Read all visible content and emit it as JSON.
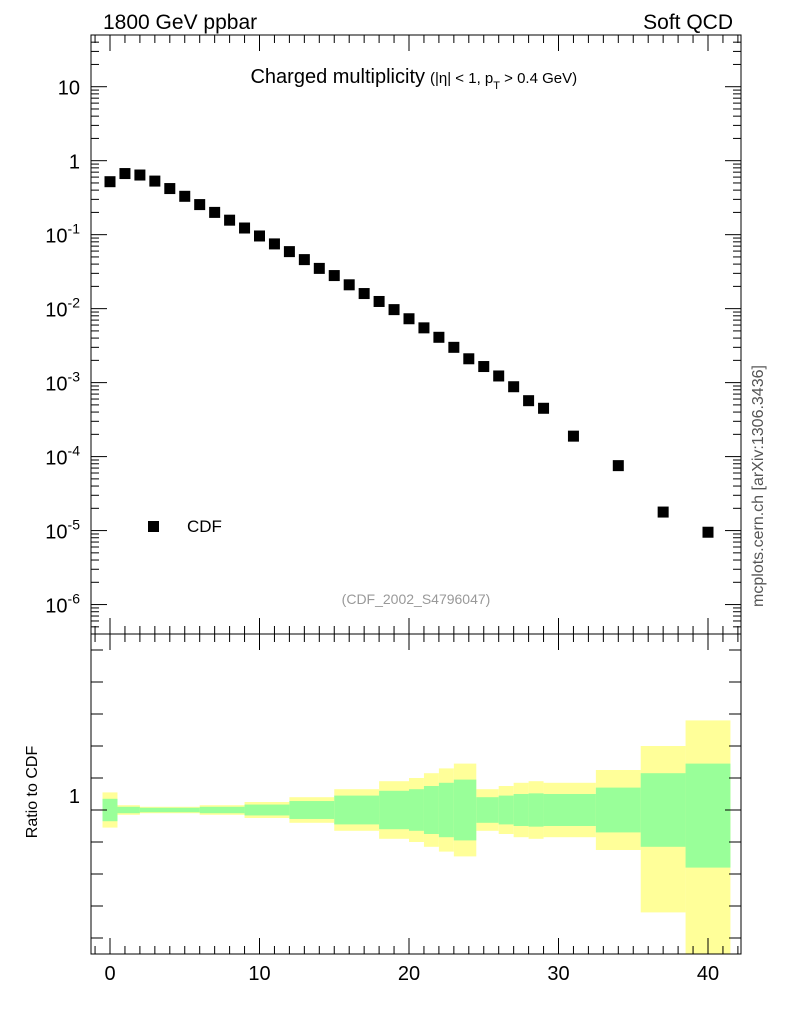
{
  "header": {
    "left": "1800 GeV ppbar",
    "right": "Soft QCD"
  },
  "side_label": "mcplots.cern.ch [arXiv:1306.3436]",
  "title": {
    "main": "Charged multiplicity",
    "cuts_prefix": "(|η| < 1, p",
    "cuts_sub": "T",
    "cuts_suffix": " > 0.4 GeV)"
  },
  "analysis_label": "(CDF_2002_S4796047)",
  "legend": {
    "label": "CDF",
    "position": "lower-left"
  },
  "ratio_panel": {
    "ylabel": "Ratio to CDF",
    "ytick": "1"
  },
  "colors": {
    "marker": "#000000",
    "band_outer": "#ffff99",
    "band_inner": "#99ff99",
    "analysis_label": "#999999",
    "side_label": "#555555"
  },
  "chart_data": {
    "type": "scatter",
    "title": "Charged multiplicity",
    "xlabel": "",
    "ylabel": "",
    "yscale": "log",
    "xlim": [
      -1,
      42
    ],
    "ylim": [
      4e-07,
      50
    ],
    "x_ticks": [
      "0",
      "10",
      "20",
      "30",
      "40"
    ],
    "y_ticks": [
      {
        "base": "10",
        "exp": "-6"
      },
      {
        "base": "10",
        "exp": "-5"
      },
      {
        "base": "10",
        "exp": "-4"
      },
      {
        "base": "10",
        "exp": "-3"
      },
      {
        "base": "10",
        "exp": "-2"
      },
      {
        "base": "10",
        "exp": "-1"
      },
      {
        "base": "1",
        "exp": ""
      },
      {
        "base": "10",
        "exp": ""
      }
    ],
    "series": [
      {
        "name": "CDF",
        "x": [
          0,
          1,
          2,
          3,
          4,
          5,
          6,
          7,
          8,
          9,
          10,
          11,
          12,
          13,
          14,
          15,
          16,
          17,
          18,
          19,
          20,
          21,
          22,
          23,
          24,
          25,
          26,
          27,
          28,
          29,
          31,
          34,
          37,
          40
        ],
        "y": [
          0.52,
          0.67,
          0.64,
          0.53,
          0.42,
          0.33,
          0.255,
          0.2,
          0.157,
          0.123,
          0.096,
          0.075,
          0.059,
          0.046,
          0.035,
          0.028,
          0.021,
          0.016,
          0.0125,
          0.0097,
          0.0073,
          0.0055,
          0.0041,
          0.003,
          0.0021,
          0.00165,
          0.00123,
          0.00088,
          0.00057,
          0.00045,
          0.000189,
          7.55e-05,
          1.78e-05,
          9.5e-06
        ]
      }
    ],
    "ratio_band": {
      "y_range": [
        0.55,
        1.55
      ],
      "bins": [
        {
          "x0": -0.5,
          "x1": 0.5,
          "out_lo": 0.945,
          "out_hi": 1.055,
          "in_lo": 0.965,
          "in_hi": 1.035
        },
        {
          "x0": 0.5,
          "x1": 2,
          "out_lo": 0.985,
          "out_hi": 1.015,
          "in_lo": 0.99,
          "in_hi": 1.01
        },
        {
          "x0": 2,
          "x1": 6,
          "out_lo": 0.99,
          "out_hi": 1.01,
          "in_lo": 0.993,
          "in_hi": 1.007
        },
        {
          "x0": 6,
          "x1": 9,
          "out_lo": 0.985,
          "out_hi": 1.015,
          "in_lo": 0.99,
          "in_hi": 1.01
        },
        {
          "x0": 9,
          "x1": 12,
          "out_lo": 0.975,
          "out_hi": 1.025,
          "in_lo": 0.983,
          "in_hi": 1.017
        },
        {
          "x0": 12,
          "x1": 15,
          "out_lo": 0.96,
          "out_hi": 1.04,
          "in_lo": 0.972,
          "in_hi": 1.028
        },
        {
          "x0": 15,
          "x1": 18,
          "out_lo": 0.935,
          "out_hi": 1.065,
          "in_lo": 0.955,
          "in_hi": 1.045
        },
        {
          "x0": 18,
          "x1": 20,
          "out_lo": 0.91,
          "out_hi": 1.09,
          "in_lo": 0.94,
          "in_hi": 1.06
        },
        {
          "x0": 20,
          "x1": 21,
          "out_lo": 0.9,
          "out_hi": 1.1,
          "in_lo": 0.935,
          "in_hi": 1.065
        },
        {
          "x0": 21,
          "x1": 22,
          "out_lo": 0.885,
          "out_hi": 1.115,
          "in_lo": 0.925,
          "in_hi": 1.075
        },
        {
          "x0": 22,
          "x1": 23,
          "out_lo": 0.87,
          "out_hi": 1.13,
          "in_lo": 0.915,
          "in_hi": 1.085
        },
        {
          "x0": 23,
          "x1": 24.5,
          "out_lo": 0.855,
          "out_hi": 1.145,
          "in_lo": 0.905,
          "in_hi": 1.095
        },
        {
          "x0": 24.5,
          "x1": 26,
          "out_lo": 0.935,
          "out_hi": 1.065,
          "in_lo": 0.96,
          "in_hi": 1.04
        },
        {
          "x0": 26,
          "x1": 27,
          "out_lo": 0.925,
          "out_hi": 1.075,
          "in_lo": 0.955,
          "in_hi": 1.045
        },
        {
          "x0": 27,
          "x1": 28,
          "out_lo": 0.915,
          "out_hi": 1.085,
          "in_lo": 0.95,
          "in_hi": 1.05
        },
        {
          "x0": 28,
          "x1": 29,
          "out_lo": 0.91,
          "out_hi": 1.09,
          "in_lo": 0.948,
          "in_hi": 1.052
        },
        {
          "x0": 29,
          "x1": 32.5,
          "out_lo": 0.915,
          "out_hi": 1.085,
          "in_lo": 0.95,
          "in_hi": 1.05
        },
        {
          "x0": 32.5,
          "x1": 35.5,
          "out_lo": 0.875,
          "out_hi": 1.125,
          "in_lo": 0.93,
          "in_hi": 1.07
        },
        {
          "x0": 35.5,
          "x1": 38.5,
          "out_lo": 0.68,
          "out_hi": 1.2,
          "in_lo": 0.885,
          "in_hi": 1.115
        },
        {
          "x0": 38.5,
          "x1": 41.5,
          "out_lo": 0.55,
          "out_hi": 1.28,
          "in_lo": 0.82,
          "in_hi": 1.145
        }
      ]
    }
  }
}
